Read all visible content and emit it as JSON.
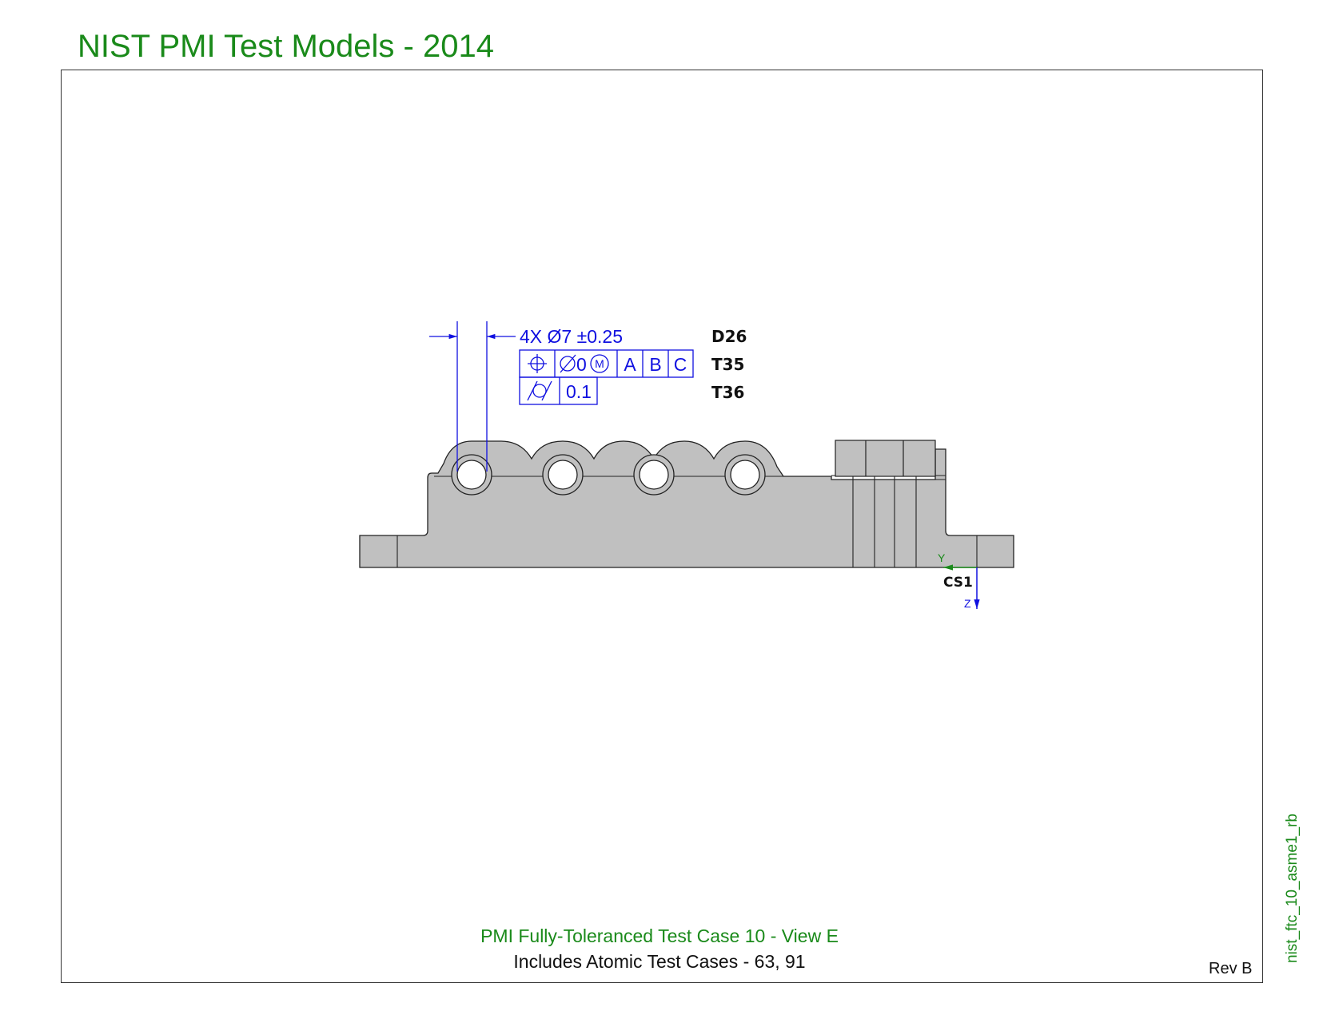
{
  "header": {
    "title": "NIST PMI Test Models - 2014"
  },
  "side_label": "nist_ftc_10_asme1_rb",
  "footer": {
    "caption": "PMI Fully-Toleranced Test Case 10 - View E",
    "subcaption": "Includes Atomic Test Cases - 63, 91",
    "revision": "Rev B"
  },
  "annotations": {
    "dimension": "4X Ø7 ±0.25",
    "fcf_position": {
      "symbol": "position-icon",
      "tolerance_value": "0",
      "modifier": "M",
      "datums": [
        "A",
        "B",
        "C"
      ]
    },
    "fcf_cylindricity": {
      "symbol": "cylindricity-icon",
      "tolerance_value": "0.1"
    },
    "ids": [
      "D26",
      "T35",
      "T36"
    ],
    "coordinate_system": {
      "name": "CS1",
      "y_axis": "Y",
      "z_axis": "Z"
    }
  },
  "colors": {
    "title_green": "#1a8a1a",
    "annotation_blue": "#1010e0",
    "part_gray": "#c0c0c0",
    "outline": "#222222"
  }
}
